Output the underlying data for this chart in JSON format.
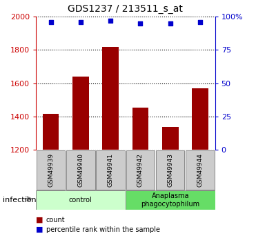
{
  "title": "GDS1237 / 213511_s_at",
  "samples": [
    "GSM49939",
    "GSM49940",
    "GSM49941",
    "GSM49942",
    "GSM49943",
    "GSM49944"
  ],
  "counts": [
    1415,
    1640,
    1820,
    1455,
    1340,
    1570
  ],
  "percentile_ranks": [
    96,
    96,
    97,
    95,
    95,
    96
  ],
  "bar_color": "#990000",
  "dot_color": "#0000cc",
  "ylim_left": [
    1200,
    2000
  ],
  "ylim_right": [
    0,
    100
  ],
  "yticks_left": [
    1200,
    1400,
    1600,
    1800,
    2000
  ],
  "yticks_right": [
    0,
    25,
    50,
    75,
    100
  ],
  "groups": [
    {
      "label": "control",
      "indices": [
        0,
        1,
        2
      ],
      "color": "#ccffcc"
    },
    {
      "label": "Anaplasma\nphagocytophilum",
      "indices": [
        3,
        4,
        5
      ],
      "color": "#66dd66"
    }
  ],
  "group_label_prefix": "infection",
  "legend_items": [
    {
      "label": "count",
      "color": "#990000"
    },
    {
      "label": "percentile rank within the sample",
      "color": "#0000cc"
    }
  ],
  "background_color": "#ffffff",
  "tick_label_color_left": "#cc0000",
  "tick_label_color_right": "#0000cc",
  "sample_box_color": "#cccccc"
}
